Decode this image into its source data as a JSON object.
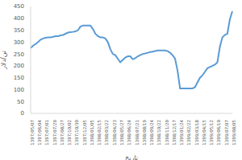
{
  "chart_data": {
    "type": "line",
    "xlabel": "تاریخ",
    "ylabel": "تن/دلار",
    "color": "#5b9bd5",
    "grid": false,
    "ylim": [
      0,
      450
    ],
    "yticks": [
      0,
      50,
      100,
      150,
      200,
      250,
      300,
      350,
      400,
      450
    ],
    "categories": [
      "1397/05/07",
      null,
      null,
      "1397/06/04",
      null,
      null,
      "1397/07/01",
      null,
      null,
      "1397/07/29",
      null,
      null,
      "1397/08/27",
      null,
      null,
      "1397/10/02",
      null,
      null,
      "1397/10/30",
      null,
      null,
      "1397/12/05",
      null,
      null,
      "1398/01/05",
      null,
      null,
      "1398/02/15",
      null,
      null,
      "1398/03/22",
      null,
      null,
      "1398/04/23",
      null,
      null,
      "1398/05/27",
      null,
      null,
      "1398/06/24",
      null,
      null,
      "1398/07/21",
      null,
      null,
      "1398/08/19",
      null,
      null,
      "1398/09/24",
      null,
      null,
      "1398/10/22",
      null,
      null,
      "1398/11/20",
      null,
      null,
      "1398/12/17",
      null,
      null,
      "1399/01/24",
      null,
      null,
      "1399/02/22",
      null,
      null,
      "1399/03/18",
      null,
      null,
      "1399/04/15",
      null,
      null,
      "1399/05/12",
      null,
      null,
      "1399/06/10",
      null,
      null,
      "1399/07/07",
      null,
      null,
      "1399/08/05"
    ],
    "values": [
      275,
      285,
      292,
      300,
      310,
      315,
      318,
      320,
      320,
      322,
      325,
      325,
      328,
      330,
      335,
      340,
      342,
      343,
      345,
      350,
      365,
      370,
      370,
      370,
      370,
      355,
      335,
      325,
      320,
      320,
      315,
      300,
      270,
      250,
      245,
      230,
      215,
      225,
      235,
      240,
      240,
      228,
      232,
      240,
      245,
      250,
      252,
      255,
      258,
      260,
      262,
      265,
      265,
      265,
      265,
      262,
      255,
      245,
      230,
      180,
      105,
      105,
      105,
      105,
      105,
      105,
      110,
      130,
      150,
      160,
      175,
      190,
      195,
      200,
      205,
      215,
      280,
      320,
      330,
      335,
      395,
      430
    ]
  }
}
